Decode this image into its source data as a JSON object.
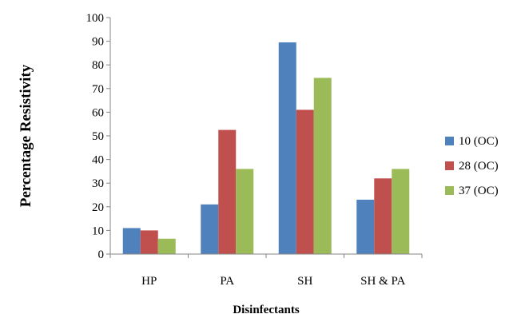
{
  "chart_data": {
    "type": "bar",
    "xlabel": "Disinfectants",
    "ylabel": "Percentage Resistivity",
    "categories": [
      "HP",
      "PA",
      "SH",
      "SH & PA"
    ],
    "ylim": [
      0,
      100
    ],
    "yticks": [
      "0",
      "10",
      "20",
      "30",
      "40",
      "50",
      "60",
      "70",
      "80",
      "90",
      "100"
    ],
    "grid": false,
    "legend_position": "right",
    "series": [
      {
        "name": "10 (OC)",
        "color": "#4f81bd",
        "values": [
          11,
          21,
          89.5,
          23
        ]
      },
      {
        "name": "28 (OC)",
        "color": "#c0504d",
        "values": [
          10,
          52.5,
          61,
          32
        ]
      },
      {
        "name": "37 (OC)",
        "color": "#9bbb59",
        "values": [
          6.5,
          36,
          74.5,
          36
        ]
      }
    ]
  }
}
